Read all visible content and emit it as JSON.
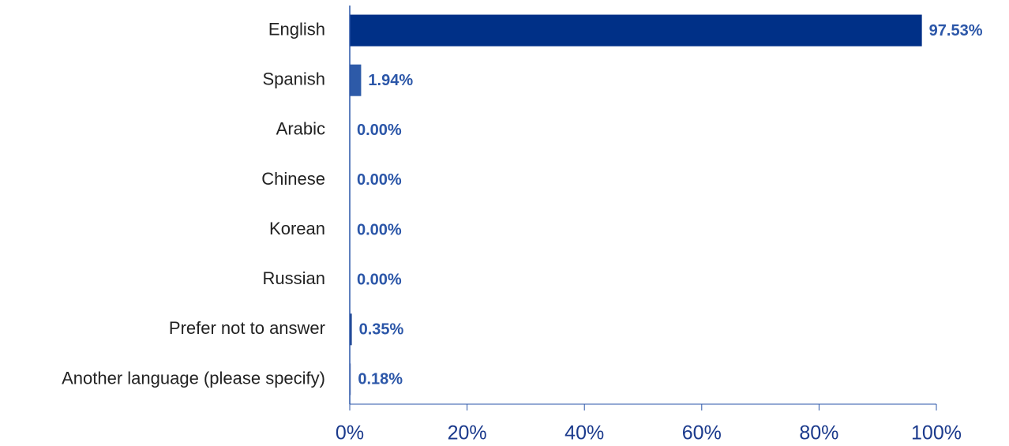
{
  "chart_data": {
    "type": "bar",
    "orientation": "horizontal",
    "categories": [
      "English",
      "Spanish",
      "Arabic",
      "Chinese",
      "Korean",
      "Russian",
      "Prefer not to answer",
      "Another language (please specify)"
    ],
    "values": [
      97.53,
      1.94,
      0,
      0,
      0,
      0,
      0.35,
      0.18
    ],
    "value_labels": [
      "97.53%",
      "1.94%",
      "0.00%",
      "0.00%",
      "0.00%",
      "0.00%",
      "0.35%",
      "0.18%"
    ],
    "colors": [
      "#003087",
      "#2d5aa8",
      "#1f4593",
      "#1f4593",
      "#1f4593",
      "#1f4593",
      "#1f4593",
      "#8c9dcb"
    ],
    "xlim": [
      0,
      100
    ],
    "xticks": [
      {
        "value": 0,
        "label": "0%"
      },
      {
        "value": 20,
        "label": "20%"
      },
      {
        "value": 40,
        "label": "40%"
      },
      {
        "value": 60,
        "label": "60%"
      },
      {
        "value": 80,
        "label": "80%"
      },
      {
        "value": 100,
        "label": "100%"
      }
    ]
  }
}
